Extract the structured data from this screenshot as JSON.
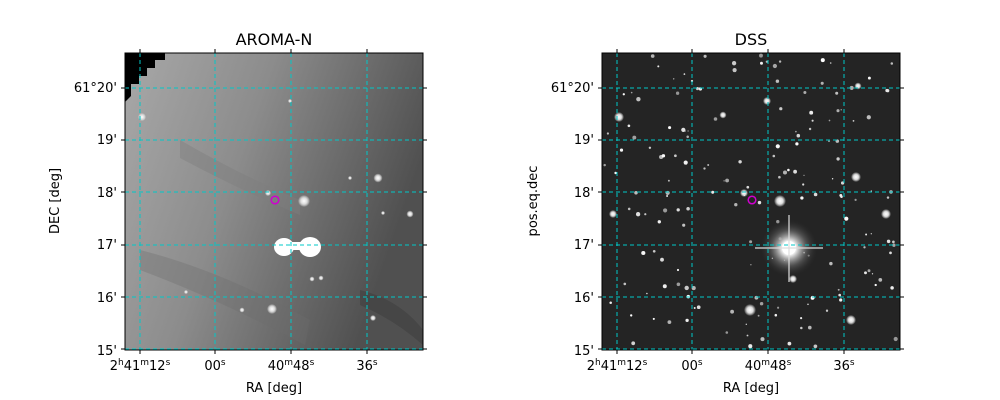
{
  "figure": {
    "panels": [
      {
        "id": "left",
        "title": "AROMA-N",
        "xlabel": "RA [deg]",
        "ylabel": "DEC [deg]",
        "x_ticks": [
          {
            "prefix": "2",
            "h": "h",
            "mid": "41",
            "m": "m",
            "num": "12",
            "s": "s"
          },
          {
            "prefix": "",
            "h": "",
            "mid": "",
            "m": "",
            "num": "00",
            "s": "s"
          },
          {
            "prefix": "",
            "h": "",
            "mid": "40",
            "m": "m",
            "num": "48",
            "s": "s"
          },
          {
            "prefix": "",
            "h": "",
            "mid": "",
            "m": "",
            "num": "36",
            "s": "s"
          }
        ],
        "y_ticks": [
          "61°20'",
          "19'",
          "18'",
          "17'",
          "16'",
          "15'"
        ],
        "style": "aroma",
        "colors": {
          "grid": "#00c8c8",
          "marker": "#d000d0"
        }
      },
      {
        "id": "right",
        "title": "DSS",
        "xlabel": "RA [deg]",
        "ylabel": "pos.eq.dec",
        "x_ticks": [
          {
            "prefix": "2",
            "h": "h",
            "mid": "41",
            "m": "m",
            "num": "12",
            "s": "s"
          },
          {
            "prefix": "",
            "h": "",
            "mid": "",
            "m": "",
            "num": "00",
            "s": "s"
          },
          {
            "prefix": "",
            "h": "",
            "mid": "40",
            "m": "m",
            "num": "48",
            "s": "s"
          },
          {
            "prefix": "",
            "h": "",
            "mid": "",
            "m": "",
            "num": "36",
            "s": "s"
          }
        ],
        "y_ticks": [
          "61°20'",
          "19'",
          "18'",
          "17'",
          "16'",
          "15'"
        ],
        "style": "dss",
        "colors": {
          "grid": "#00c8c8",
          "marker": "#d000d0"
        }
      }
    ]
  }
}
